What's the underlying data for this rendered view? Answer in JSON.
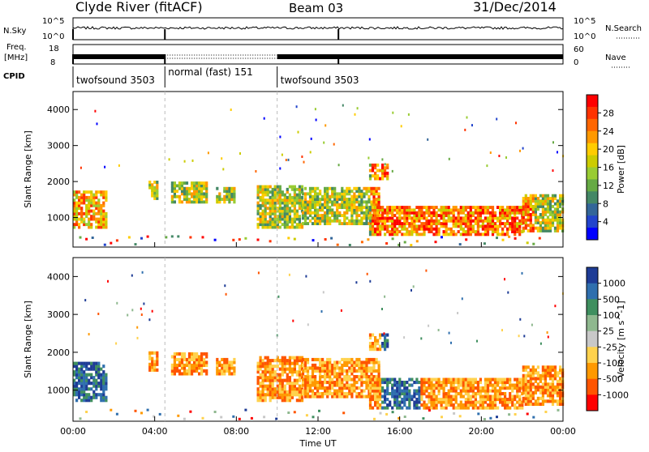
{
  "header": {
    "title": "Clyde River (fitACF)",
    "beam": "Beam 03",
    "date": "31/Dec/2014"
  },
  "top_panels": {
    "nsky_label": "N.Sky",
    "nsearch_label": "N.Search",
    "nsky_ticks": [
      "10^5",
      "10^0"
    ],
    "nsearch_ticks": [
      "10^5",
      "10^0"
    ],
    "freq_label": "Freq.",
    "freq_unit": "[MHz]",
    "freq_ticks": [
      "18",
      "8"
    ],
    "nave_label": "Nave",
    "nave_ticks": [
      "60",
      "0"
    ],
    "cpid_label": "CPID",
    "cpid_segments": [
      {
        "label": "twofsound 3503",
        "start_h": 0,
        "end_h": 4.5
      },
      {
        "label": "normal (fast) 151",
        "start_h": 4.5,
        "end_h": 10.0
      },
      {
        "label": "twofsound 3503",
        "start_h": 10.0,
        "end_h": 24
      }
    ]
  },
  "chart_data": [
    {
      "type": "heatmap",
      "panel": "power",
      "ylabel": "Slant Range [km]",
      "y_ticks": [
        "4000",
        "3000",
        "2000",
        "1000"
      ],
      "ylim": [
        180,
        4500
      ],
      "x_range_hours": [
        0,
        24
      ],
      "colorbar": {
        "label": "Power [dB]",
        "ticks": [
          "28",
          "24",
          "20",
          "16",
          "12",
          "8",
          "4"
        ],
        "colors": [
          "#ff0000",
          "#ff3300",
          "#ff6600",
          "#ff9900",
          "#ffcc00",
          "#cccc00",
          "#99cc33",
          "#66aa44",
          "#448866",
          "#336699",
          "#2244cc",
          "#0000ff"
        ]
      }
    },
    {
      "type": "heatmap",
      "panel": "velocity",
      "ylabel": "Slant Range [km]",
      "y_ticks": [
        "4000",
        "3000",
        "2000",
        "1000"
      ],
      "ylim": [
        180,
        4500
      ],
      "x_range_hours": [
        0,
        24
      ],
      "colorbar": {
        "label": "Velocity [m s^-1]",
        "ticks": [
          "1000",
          "500",
          "100",
          "25",
          "-25",
          "-100",
          "-500",
          "-1000"
        ],
        "colors": [
          "#1e3c96",
          "#2f6fae",
          "#3f8f5f",
          "#8fb88f",
          "#c8c8c8",
          "#ffd24d",
          "#ff9900",
          "#ff5500",
          "#ff0000"
        ]
      }
    }
  ],
  "x_axis": {
    "label": "Time UT",
    "ticks": [
      "00:00",
      "04:00",
      "08:00",
      "12:00",
      "16:00",
      "20:00",
      "00:00"
    ],
    "tick_hours": [
      0,
      4,
      8,
      12,
      16,
      20,
      24
    ]
  },
  "colors": {
    "frame": "#000000",
    "dashed": "#bbbbbb"
  }
}
